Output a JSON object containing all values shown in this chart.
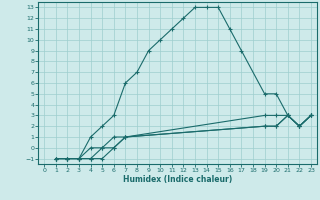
{
  "background_color": "#ceeaea",
  "grid_color": "#9ecece",
  "line_color": "#1a6b6b",
  "xlabel": "Humidex (Indice chaleur)",
  "xlim": [
    -0.5,
    23.5
  ],
  "ylim": [
    -1.5,
    13.5
  ],
  "xticks": [
    0,
    1,
    2,
    3,
    4,
    5,
    6,
    7,
    8,
    9,
    10,
    11,
    12,
    13,
    14,
    15,
    16,
    17,
    18,
    19,
    20,
    21,
    22,
    23
  ],
  "yticks": [
    -1,
    0,
    1,
    2,
    3,
    4,
    5,
    6,
    7,
    8,
    9,
    10,
    11,
    12,
    13
  ],
  "curves": [
    {
      "x": [
        1,
        2,
        3,
        4,
        5,
        6,
        7,
        8,
        9,
        10,
        11,
        12,
        13,
        14,
        15,
        16,
        17,
        19,
        20,
        21,
        22,
        23
      ],
      "y": [
        -1,
        -1,
        -1,
        1,
        2,
        3,
        6,
        7,
        9,
        10,
        11,
        12,
        13,
        13,
        13,
        11,
        9,
        5,
        5,
        3,
        2,
        3
      ]
    },
    {
      "x": [
        1,
        2,
        3,
        4,
        5,
        6,
        7,
        19,
        20,
        21,
        22,
        23
      ],
      "y": [
        -1,
        -1,
        -1,
        0,
        0,
        1,
        1,
        3,
        3,
        3,
        2,
        3
      ]
    },
    {
      "x": [
        1,
        2,
        3,
        4,
        5,
        6,
        7,
        19,
        20,
        21,
        22,
        23
      ],
      "y": [
        -1,
        -1,
        -1,
        -1,
        0,
        0,
        1,
        2,
        2,
        3,
        2,
        3
      ]
    },
    {
      "x": [
        1,
        2,
        3,
        4,
        5,
        6,
        7,
        19,
        20,
        21,
        22,
        23
      ],
      "y": [
        -1,
        -1,
        -1,
        -1,
        -1,
        0,
        1,
        2,
        2,
        3,
        2,
        3
      ]
    }
  ]
}
